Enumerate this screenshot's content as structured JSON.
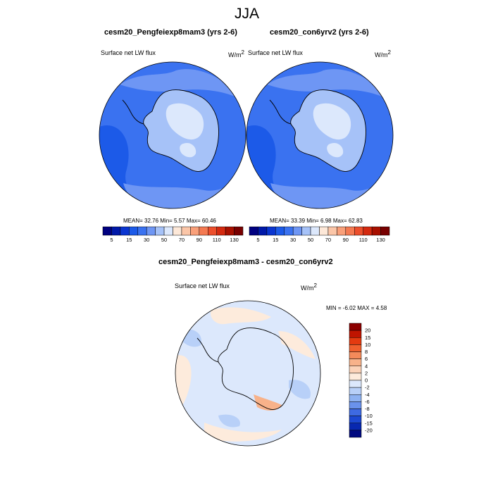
{
  "page": {
    "title": "JJA"
  },
  "panels": [
    {
      "title": "cesm20_Pengfeiexp8mam3 (yrs 2-6)",
      "var_label": "Surface net LW flux",
      "units_base": "W/m",
      "units_exp": "2",
      "stats": "MEAN=  32.76  Min=   5.57  Max=  60.46"
    },
    {
      "title": "cesm20_con6yrv2 (yrs 2-6)",
      "var_label": "Surface net LW flux",
      "units_base": "W/m",
      "units_exp": "2",
      "stats": "MEAN=  33.39  Min=   6.98  Max=  62.83"
    }
  ],
  "diff": {
    "title": "cesm20_Pengfeiexp8mam3 - cesm20_con6yrv2",
    "var_label": "Surface net LW flux",
    "units_base": "W/m",
    "units_exp": "2",
    "stats": "MIN =  -6.02 MAX =   4.58"
  },
  "colorbar_main": {
    "labels": [
      "5",
      "15",
      "30",
      "50",
      "70",
      "90",
      "110",
      "130"
    ],
    "colors": [
      "#000080",
      "#0018a8",
      "#0a35d0",
      "#1c5ae8",
      "#3a72f0",
      "#6e96f4",
      "#a6c2f8",
      "#dce8fc",
      "#fde8d8",
      "#fbc6a8",
      "#f9a07a",
      "#f47a52",
      "#ec4f2c",
      "#d42a10",
      "#a81000",
      "#780000"
    ]
  },
  "colorbar_diff": {
    "labels": [
      "20",
      "15",
      "10",
      "8",
      "6",
      "4",
      "2",
      "0",
      "-2",
      "-4",
      "-6",
      "-8",
      "-10",
      "-15",
      "-20"
    ],
    "colors": [
      "#8c0000",
      "#c01400",
      "#e43a10",
      "#f0602e",
      "#f48a5a",
      "#f8b28a",
      "#fbd2b8",
      "#fdebdc",
      "#dce8fc",
      "#b8d0f8",
      "#8eb2f2",
      "#6a92ec",
      "#3e6ae2",
      "#1c48d2",
      "#0828b0",
      "#000a80"
    ]
  },
  "map_colors": {
    "ocean_main": "#3a72f0",
    "ocean_main_dark": "#1c5ae8",
    "ice_main": "#6e96f4",
    "land_main": "#a6c2f8",
    "land_main_light": "#dce8fc",
    "diff_base": "#dce8fc",
    "diff_light_blue": "#b8d0f8",
    "diff_pos": "#fdebdc",
    "diff_pos_strong": "#f8b28a"
  }
}
